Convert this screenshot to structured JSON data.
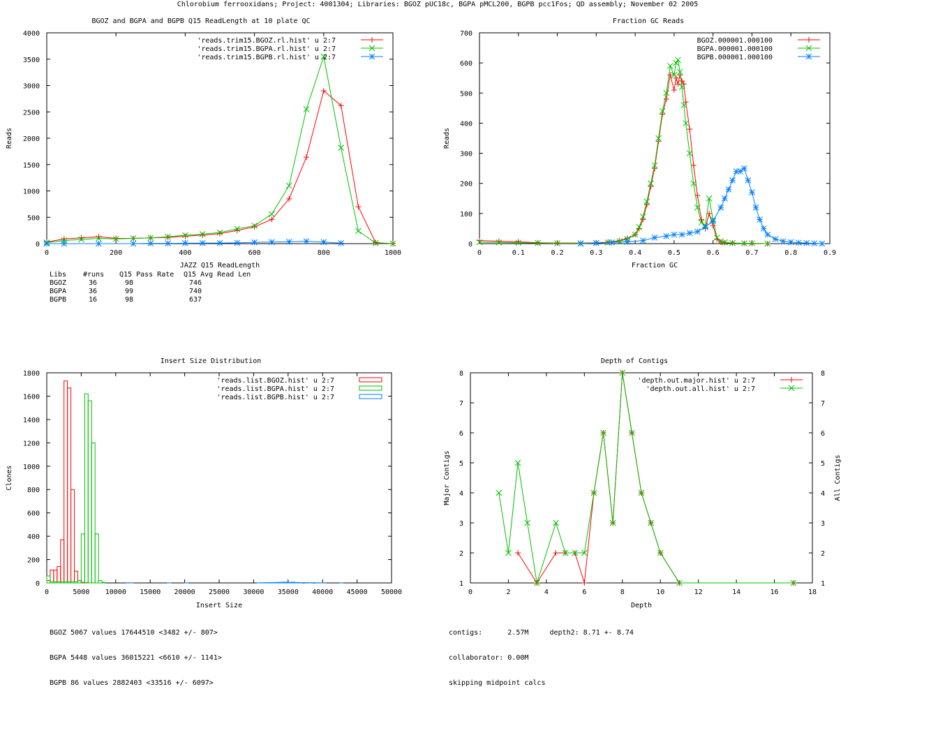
{
  "header": {
    "title": "Chlorobium ferrooxidans; Project: 4001304; Libraries: BGOZ pUC18c, BGPA pMCL200, BGPB pcc1Fos; QD assembly; November 02 2005"
  },
  "colors": {
    "red": "#ff0000",
    "green": "#00c000",
    "blue": "#0080ff"
  },
  "read_length_stats": {
    "header": [
      "Libs",
      "#runs",
      "Q15 Pass Rate",
      "Q15 Avg Read Len"
    ],
    "rows": [
      [
        "BGOZ",
        "36",
        "98",
        "746"
      ],
      [
        "BGPA",
        "36",
        "99",
        "740"
      ],
      [
        "BGPB",
        "16",
        "98",
        "637"
      ]
    ]
  },
  "insert_stats": [
    "BGOZ 5067 values 17644510 <3482 +/- 807>",
    "BGPA 5448 values 36015221 <6610 +/- 1141>",
    "BGPB 86 values 2882403 <33516 +/- 6097>"
  ],
  "depth_stats": [
    "contigs:      2.57M     depth2: 8.71 +- 8.74",
    "collaborator: 0.00M",
    "skipping midpoint calcs"
  ],
  "chart_data": [
    {
      "type": "line",
      "title": "BGOZ and BGPA and BGPB Q15 ReadLength at 10 plate QC",
      "xlabel": "JAZZ Q15 ReadLength",
      "ylabel": "Reads",
      "xlim": [
        0,
        1000
      ],
      "ylim": [
        0,
        4000
      ],
      "xticks": [
        0,
        200,
        400,
        600,
        800,
        1000
      ],
      "yticks": [
        0,
        500,
        1000,
        1500,
        2000,
        2500,
        3000,
        3500,
        4000
      ],
      "legend": "top-right",
      "series": [
        {
          "name": "'reads.trim15.BGOZ.rl.hist' u 2:7",
          "color": "#ff0000",
          "marker": "plus",
          "x": [
            0,
            50,
            100,
            150,
            200,
            250,
            300,
            350,
            400,
            450,
            500,
            550,
            600,
            650,
            700,
            750,
            800,
            850,
            900,
            950,
            1000
          ],
          "y": [
            30,
            90,
            110,
            130,
            100,
            100,
            110,
            120,
            140,
            160,
            190,
            250,
            320,
            460,
            850,
            1640,
            2900,
            2620,
            700,
            20,
            0
          ]
        },
        {
          "name": "'reads.trim15.BGPA.rl.hist' u 2:7",
          "color": "#00c000",
          "marker": "cross",
          "x": [
            0,
            50,
            100,
            150,
            200,
            250,
            300,
            350,
            400,
            450,
            500,
            550,
            600,
            650,
            700,
            750,
            800,
            850,
            900,
            950,
            1000
          ],
          "y": [
            20,
            60,
            80,
            100,
            90,
            100,
            110,
            130,
            160,
            180,
            210,
            280,
            340,
            560,
            1100,
            2550,
            3550,
            1820,
            240,
            10,
            0
          ]
        },
        {
          "name": "'reads.trim15.BGPB.rl.hist' u 2:7",
          "color": "#0080ff",
          "marker": "star",
          "x": [
            0,
            50,
            150,
            250,
            300,
            350,
            400,
            450,
            500,
            550,
            600,
            650,
            700,
            750,
            800,
            850
          ],
          "y": [
            0,
            0,
            0,
            0,
            5,
            5,
            8,
            10,
            12,
            15,
            25,
            30,
            35,
            45,
            30,
            10
          ]
        }
      ]
    },
    {
      "type": "line",
      "title": "Fraction GC Reads",
      "xlabel": "Fraction GC",
      "ylabel": "Reads",
      "xlim": [
        0,
        0.9
      ],
      "ylim": [
        0,
        700
      ],
      "xticks": [
        0,
        0.1,
        0.2,
        0.3,
        0.4,
        0.5,
        0.6,
        0.7,
        0.8,
        0.9
      ],
      "yticks": [
        0,
        100,
        200,
        300,
        400,
        500,
        600,
        700
      ],
      "legend": "top-right",
      "series": [
        {
          "name": "BGOZ.000001.000100",
          "color": "#ff0000",
          "marker": "plus",
          "x": [
            0,
            0.05,
            0.1,
            0.15,
            0.2,
            0.26,
            0.3,
            0.33,
            0.36,
            0.38,
            0.4,
            0.41,
            0.42,
            0.43,
            0.44,
            0.45,
            0.46,
            0.47,
            0.48,
            0.49,
            0.5,
            0.505,
            0.51,
            0.515,
            0.52,
            0.525,
            0.53,
            0.54,
            0.55,
            0.56,
            0.57,
            0.58,
            0.59,
            0.6,
            0.61,
            0.62,
            0.63,
            0.65,
            0.68,
            0.7,
            0.74
          ],
          "y": [
            10,
            8,
            6,
            3,
            2,
            2,
            3,
            5,
            10,
            18,
            30,
            50,
            80,
            130,
            190,
            250,
            340,
            430,
            480,
            560,
            510,
            550,
            530,
            560,
            540,
            530,
            470,
            380,
            260,
            160,
            80,
            50,
            100,
            60,
            15,
            5,
            3,
            2,
            1,
            1,
            0
          ]
        },
        {
          "name": "BGPA.000001.000100",
          "color": "#00c000",
          "marker": "cross",
          "x": [
            0,
            0.05,
            0.1,
            0.15,
            0.2,
            0.26,
            0.3,
            0.33,
            0.36,
            0.38,
            0.4,
            0.41,
            0.42,
            0.43,
            0.44,
            0.45,
            0.46,
            0.47,
            0.48,
            0.49,
            0.5,
            0.505,
            0.51,
            0.515,
            0.52,
            0.525,
            0.53,
            0.54,
            0.55,
            0.56,
            0.57,
            0.58,
            0.59,
            0.6,
            0.61,
            0.62,
            0.63,
            0.65,
            0.68,
            0.7,
            0.74
          ],
          "y": [
            5,
            4,
            3,
            2,
            1,
            1,
            2,
            4,
            8,
            15,
            30,
            55,
            90,
            140,
            200,
            260,
            350,
            440,
            500,
            590,
            560,
            600,
            610,
            570,
            520,
            460,
            400,
            300,
            200,
            120,
            70,
            60,
            150,
            80,
            20,
            8,
            4,
            2,
            1,
            1,
            0
          ]
        },
        {
          "name": "BGPB.000001.000100",
          "color": "#0080ff",
          "marker": "star",
          "x": [
            0.26,
            0.3,
            0.34,
            0.38,
            0.42,
            0.45,
            0.48,
            0.5,
            0.52,
            0.54,
            0.56,
            0.58,
            0.6,
            0.62,
            0.63,
            0.64,
            0.65,
            0.66,
            0.67,
            0.68,
            0.69,
            0.7,
            0.71,
            0.72,
            0.73,
            0.74,
            0.76,
            0.78,
            0.8,
            0.82,
            0.84,
            0.86,
            0.88
          ],
          "y": [
            0,
            2,
            4,
            6,
            10,
            20,
            25,
            30,
            30,
            35,
            40,
            55,
            75,
            120,
            150,
            180,
            210,
            240,
            240,
            250,
            210,
            170,
            120,
            80,
            50,
            30,
            15,
            8,
            5,
            3,
            2,
            1,
            0
          ]
        }
      ]
    },
    {
      "type": "bar",
      "title": "Insert Size Distribution",
      "xlabel": "Insert Size",
      "ylabel": "Clones",
      "xlim": [
        0,
        50000
      ],
      "ylim": [
        0,
        1800
      ],
      "xticks": [
        0,
        5000,
        10000,
        15000,
        20000,
        25000,
        30000,
        35000,
        40000,
        45000,
        50000
      ],
      "yticks": [
        0,
        200,
        400,
        600,
        800,
        1000,
        1200,
        1400,
        1600,
        1800
      ],
      "legend": "top-right",
      "bin_width": 500,
      "series": [
        {
          "name": "'reads.list.BGOZ.hist' u 2:7",
          "color": "#ff0000",
          "x": [
            0,
            500,
            1000,
            1500,
            2000,
            2500,
            3000,
            3500,
            4000,
            4500,
            5000,
            5500
          ],
          "y": [
            20,
            110,
            110,
            140,
            370,
            1730,
            1670,
            800,
            100,
            20,
            5,
            2
          ]
        },
        {
          "name": "'reads.list.BGPA.hist' u 2:7",
          "color": "#00c000",
          "x": [
            0,
            500,
            1000,
            1500,
            2000,
            2500,
            3000,
            3500,
            4000,
            4500,
            5000,
            5500,
            6000,
            6500,
            7000,
            7500,
            8000
          ],
          "y": [
            60,
            10,
            10,
            10,
            10,
            10,
            10,
            10,
            10,
            20,
            420,
            1620,
            1560,
            1200,
            420,
            20,
            5
          ]
        },
        {
          "name": "'reads.list.BGPB.hist' u 2:7",
          "color": "#0080ff",
          "x": [
            11500,
            12000,
            17500,
            20000,
            30500,
            31000,
            31500,
            32000,
            32500,
            33000,
            33500,
            34000,
            34500,
            35000,
            35500,
            36000,
            36500,
            37500,
            38000,
            39000,
            39500,
            40000,
            42500
          ],
          "y": [
            2,
            1,
            1,
            1,
            1,
            2,
            2,
            3,
            3,
            4,
            5,
            6,
            6,
            5,
            6,
            4,
            3,
            3,
            2,
            2,
            1,
            2,
            1
          ]
        }
      ]
    },
    {
      "type": "line",
      "title": "Depth of Contigs",
      "xlabel": "Depth",
      "ylabel": "Major Contigs",
      "y2label": "All Contigs",
      "xlim": [
        0,
        18
      ],
      "ylim": [
        1,
        8
      ],
      "xticks": [
        0,
        2,
        4,
        6,
        8,
        10,
        12,
        14,
        16,
        18
      ],
      "yticks": [
        1,
        2,
        3,
        4,
        5,
        6,
        7,
        8
      ],
      "legend": "top-right",
      "series": [
        {
          "name": "'depth.out.major.hist' u 2:7",
          "color": "#ff0000",
          "marker": "plus",
          "x": [
            2.5,
            3.5,
            4.5,
            5,
            5.5,
            6,
            6.5,
            7,
            7.5,
            8,
            8.5,
            9,
            9.5,
            10,
            11,
            17
          ],
          "y": [
            2,
            1,
            2,
            2,
            2,
            1,
            4,
            6,
            3,
            8,
            6,
            4,
            3,
            2,
            1,
            1
          ]
        },
        {
          "name": "'depth.out.all.hist' u 2:7",
          "color": "#00c000",
          "marker": "cross",
          "x": [
            1.5,
            2,
            2.5,
            3,
            3.5,
            4.5,
            5,
            5.5,
            6,
            6.5,
            7,
            7.5,
            8,
            8.5,
            9,
            9.5,
            10,
            11,
            17
          ],
          "y": [
            4,
            2,
            5,
            3,
            1,
            3,
            2,
            2,
            2,
            4,
            6,
            3,
            8,
            6,
            4,
            3,
            2,
            1,
            1
          ]
        }
      ]
    }
  ]
}
